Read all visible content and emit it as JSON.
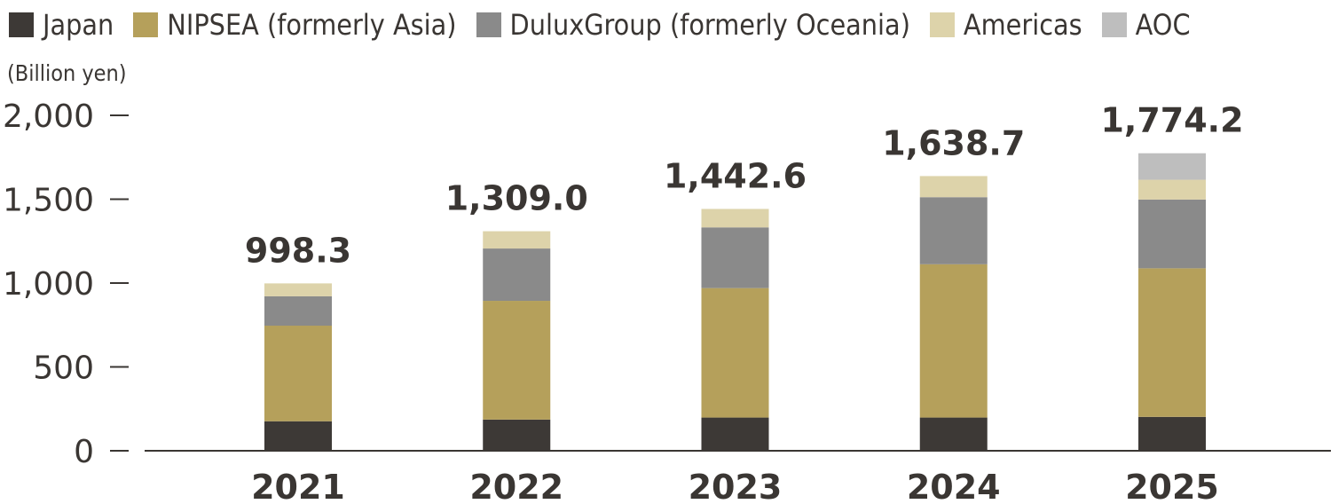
{
  "chart_data": {
    "type": "bar",
    "stacked": true,
    "unit": "(Billion yen)",
    "categories": [
      "2021",
      "2022",
      "2023",
      "2024",
      "2025"
    ],
    "series": [
      {
        "name": "Japan",
        "color": "#3d3936",
        "values": [
          176,
          186,
          198,
          198,
          202
        ]
      },
      {
        "name": "NIPSEA (formerly Asia)",
        "color": "#b5a05b",
        "values": [
          570,
          708,
          772,
          914,
          886
        ]
      },
      {
        "name": "DuluxGroup (formerly Oceania)",
        "color": "#8a8a8a",
        "values": [
          175,
          312,
          362,
          400,
          410
        ]
      },
      {
        "name": "Americas",
        "color": "#ddd3aa",
        "values": [
          77,
          103,
          110,
          126,
          118
        ]
      },
      {
        "name": "AOC",
        "color": "#bebebe",
        "values": [
          0,
          0,
          0,
          0,
          158
        ]
      }
    ],
    "totals": [
      "998.3",
      "1,309.0",
      "1,442.6",
      "1,638.7",
      "1,774.2"
    ],
    "ylim": [
      0,
      2000
    ],
    "yticks": [
      0,
      500,
      1000,
      1500,
      2000
    ],
    "ytick_labels": [
      "0",
      "500",
      "1,000",
      "1,500",
      "2,000"
    ],
    "legend_position": "top-left",
    "grid": false
  }
}
